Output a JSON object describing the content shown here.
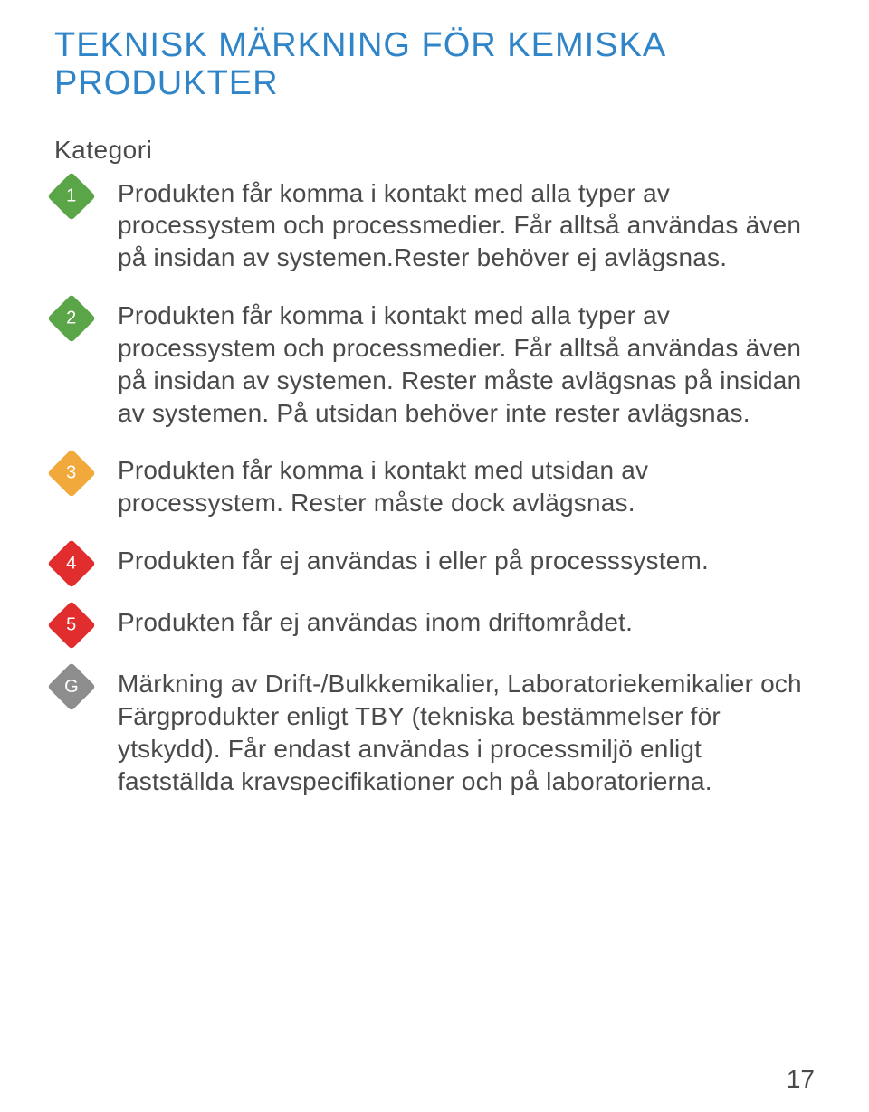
{
  "title": {
    "text": "TEKNISK MÄRKNING FÖR KEMISKA PRODUKTER",
    "color": "#2f85c7"
  },
  "subheading": "Kategori",
  "text_color": "#4a4a4a",
  "body_font_size": 28,
  "items": [
    {
      "badge": "1",
      "color": "#5aa547",
      "description": "Produkten får komma i kontakt med alla typer av processystem och processmedier. Får alltså användas även på insidan av systemen.Rester behöver ej avlägsnas."
    },
    {
      "badge": "2",
      "color": "#5aa547",
      "description": "Produkten får komma i kontakt med alla typer av processystem och processmedier. Får alltså användas även på insidan av systemen. Rester måste avlägsnas på insidan av syste­men. På utsidan behöver inte rester avlägsnas."
    },
    {
      "badge": "3",
      "color": "#f0a93a",
      "description": "Produkten får komma i kontakt med utsidan av processystem. Rester måste dock avlägs­nas."
    },
    {
      "badge": "4",
      "color": "#e12d2d",
      "description": "Produkten får ej användas i eller på process­system."
    },
    {
      "badge": "5",
      "color": "#e12d2d",
      "description": "Produkten får ej användas inom driftområdet."
    },
    {
      "badge": "G",
      "color": "#8d8d8d",
      "description": "Märkning av Drift-/Bulkkemikalier, Laborato­riekemikalier och Färgprodukter enligt TBY (tekniska bestämmelser för ytskydd). Får en­dast användas i processmiljö enligt fastställda kravspecifikationer och på laboratorierna."
    }
  ],
  "page_number": "17"
}
